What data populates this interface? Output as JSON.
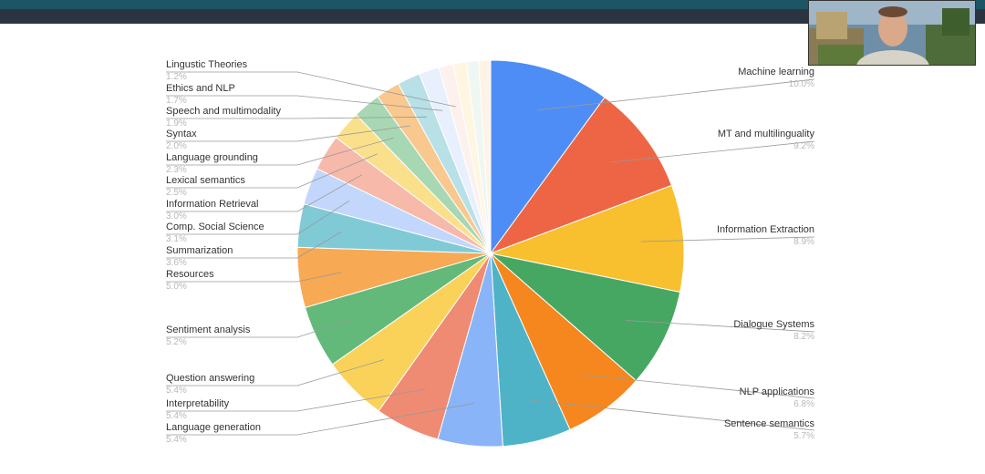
{
  "chart_data": {
    "type": "pie",
    "title": "",
    "legend": "labels-with-leader-lines",
    "slices": [
      {
        "label": "Machine learning",
        "pct": "10.0%",
        "value": 10.0,
        "color": "#4e8df5"
      },
      {
        "label": "MT and multilinguality",
        "pct": "9.2%",
        "value": 9.2,
        "color": "#ee6545"
      },
      {
        "label": "Information Extraction",
        "pct": "8.9%",
        "value": 8.9,
        "color": "#f8bf2e"
      },
      {
        "label": "Dialogue Systems",
        "pct": "8.2%",
        "value": 8.2,
        "color": "#46a762"
      },
      {
        "label": "NLP applications",
        "pct": "6.8%",
        "value": 6.8,
        "color": "#f5871e"
      },
      {
        "label": "Sentence semantics",
        "pct": "5.7%",
        "value": 5.7,
        "color": "#4fb3c7"
      },
      {
        "label": "Language generation",
        "pct": "5.4%",
        "value": 5.4,
        "color": "#8ab4f8"
      },
      {
        "label": "Interpretability",
        "pct": "5.4%",
        "value": 5.4,
        "color": "#ef8a73"
      },
      {
        "label": "Question answering",
        "pct": "5.4%",
        "value": 5.4,
        "color": "#fad25a"
      },
      {
        "label": "Sentiment analysis",
        "pct": "5.2%",
        "value": 5.2,
        "color": "#62b97a"
      },
      {
        "label": "Resources",
        "pct": "5.0%",
        "value": 5.0,
        "color": "#f7a954"
      },
      {
        "label": "Summarization",
        "pct": "3.6%",
        "value": 3.6,
        "color": "#80cad6"
      },
      {
        "label": "Comp. Social Science",
        "pct": "3.1%",
        "value": 3.1,
        "color": "#c2d7fb"
      },
      {
        "label": "Information Retrieval",
        "pct": "3.0%",
        "value": 3.0,
        "color": "#f7b9aa"
      },
      {
        "label": "Lexical semantics",
        "pct": "2.5%",
        "value": 2.5,
        "color": "#fbe08c"
      },
      {
        "label": "Language grounding",
        "pct": "2.3%",
        "value": 2.3,
        "color": "#a8d7b4"
      },
      {
        "label": "Syntax",
        "pct": "2.0%",
        "value": 2.0,
        "color": "#f9c88f"
      },
      {
        "label": "Speech and multimodality",
        "pct": "1.9%",
        "value": 1.9,
        "color": "#b7e0e7"
      },
      {
        "label": "Ethics and NLP",
        "pct": "1.7%",
        "value": 1.7,
        "color": "#e8f0fd"
      },
      {
        "label": "Lingustic Theories",
        "pct": "1.2%",
        "value": 1.2,
        "color": "#fdf1ee"
      },
      {
        "label": "",
        "pct": "",
        "value": 1.1,
        "color": "#fff6e2"
      },
      {
        "label": "",
        "pct": "",
        "value": 1.0,
        "color": "#eef7f1"
      },
      {
        "label": "",
        "pct": "",
        "value": 1.0,
        "color": "#fef3e6"
      }
    ]
  },
  "webcam": {
    "icon": "presenter-video-icon"
  }
}
